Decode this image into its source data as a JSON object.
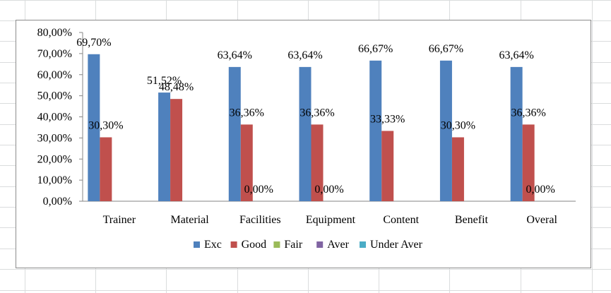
{
  "chart_data": {
    "type": "bar",
    "title": "",
    "xlabel": "",
    "ylabel": "",
    "ylim": [
      0,
      0.8
    ],
    "ytick_step": 0.1,
    "ytick_labels": [
      "0,00%",
      "10,00%",
      "20,00%",
      "30,00%",
      "40,00%",
      "50,00%",
      "60,00%",
      "70,00%",
      "80,00%"
    ],
    "categories": [
      "Trainer",
      "Material",
      "Facilities",
      "Equipment",
      "Content",
      "Benefit",
      "Overal"
    ],
    "legend_position": "bottom",
    "series": [
      {
        "name": "Exc",
        "color": "#4f81bd",
        "values": [
          0.697,
          0.5152,
          0.6364,
          0.6364,
          0.6667,
          0.6667,
          0.6364
        ],
        "labels": [
          "69,70%",
          "51,52%",
          "63,64%",
          "63,64%",
          "66,67%",
          "66,67%",
          "63,64%"
        ]
      },
      {
        "name": "Good",
        "color": "#c0504d",
        "values": [
          0.303,
          0.4848,
          0.3636,
          0.3636,
          0.3333,
          0.303,
          0.3636
        ],
        "labels": [
          "30,30%",
          "48,48%",
          "36,36%",
          "36,36%",
          "33,33%",
          "30,30%",
          "36,36%"
        ]
      },
      {
        "name": "Fair",
        "color": "#9bbb59",
        "values": [
          null,
          null,
          0,
          0,
          null,
          null,
          0
        ],
        "labels": [
          null,
          null,
          "0,00%",
          "0,00%",
          null,
          null,
          "0,00%"
        ]
      },
      {
        "name": "Aver",
        "color": "#8064a2",
        "values": [
          null,
          null,
          null,
          null,
          null,
          null,
          null
        ],
        "labels": [
          null,
          null,
          null,
          null,
          null,
          null,
          null
        ]
      },
      {
        "name": "Under Aver",
        "color": "#4bacc6",
        "values": [
          null,
          null,
          null,
          null,
          null,
          null,
          null
        ],
        "labels": [
          null,
          null,
          null,
          null,
          null,
          null,
          null
        ]
      }
    ]
  }
}
